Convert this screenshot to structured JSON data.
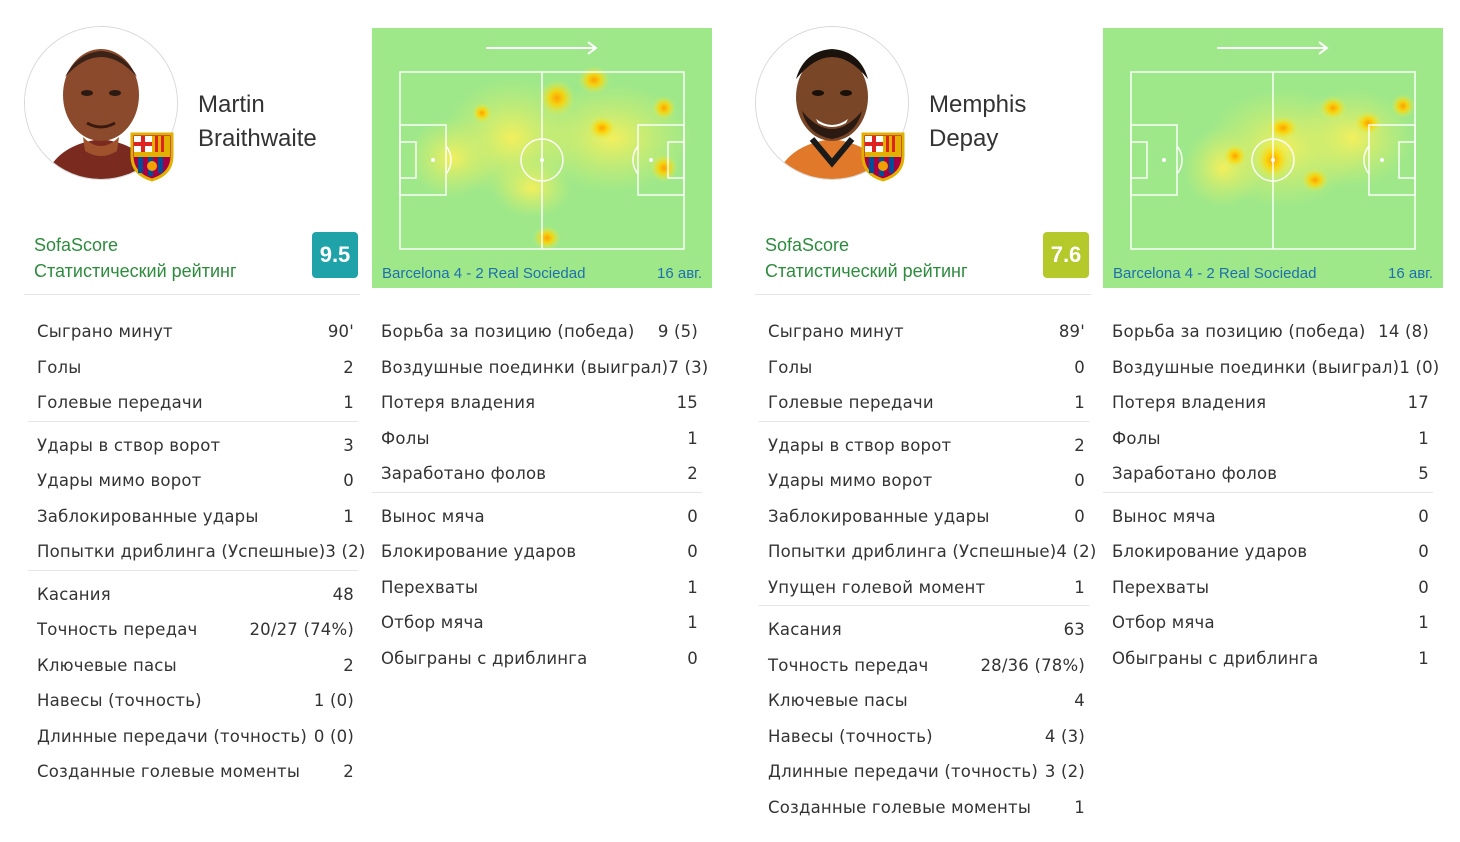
{
  "players": [
    {
      "first_name": "Martin",
      "last_name": "Braithwaite",
      "rating_label_1": "SofaScore",
      "rating_label_2": "Статистический рейтинг",
      "rating": "9.5",
      "rating_color": "#1fa3a8",
      "heatmap_caption": "Barcelona 4 - 2 Real Sociedad",
      "heatmap_date": "16 авг.",
      "left_groups": [
        [
          {
            "label": "Сыграно минут",
            "value": "90'"
          },
          {
            "label": "Голы",
            "value": "2"
          },
          {
            "label": "Голевые передачи",
            "value": "1"
          }
        ],
        [
          {
            "label": "Удары в створ ворот",
            "value": "3"
          },
          {
            "label": "Удары мимо ворот",
            "value": "0"
          },
          {
            "label": "Заблокированные удары",
            "value": "1"
          },
          {
            "label": "Попытки дриблинга (Успешные)",
            "value": "3 (2)"
          }
        ],
        [
          {
            "label": "Касания",
            "value": "48"
          },
          {
            "label": "Точность передач",
            "value": "20/27 (74%)"
          },
          {
            "label": "Ключевые пасы",
            "value": "2"
          },
          {
            "label": "Навесы (точность)",
            "value": "1 (0)"
          },
          {
            "label": "Длинные передачи (точность)",
            "value": "0 (0)"
          },
          {
            "label": "Созданные голевые моменты",
            "value": "2"
          }
        ]
      ],
      "right_groups": [
        [
          {
            "label": "Борьба за позицию (победа)",
            "value": "9 (5)"
          },
          {
            "label": "Воздушные поединки (выиграл)",
            "value": "7 (3)"
          },
          {
            "label": "Потеря владения",
            "value": "15"
          },
          {
            "label": "Фолы",
            "value": "1"
          },
          {
            "label": "Заработано фолов",
            "value": "2"
          }
        ],
        [
          {
            "label": "Вынос мяча",
            "value": "0"
          },
          {
            "label": "Блокирование ударов",
            "value": "0"
          },
          {
            "label": "Перехваты",
            "value": "1"
          },
          {
            "label": "Отбор мяча",
            "value": "1"
          },
          {
            "label": "Обыграны с дриблинга",
            "value": "0"
          }
        ]
      ]
    },
    {
      "first_name": "Memphis",
      "last_name": "Depay",
      "rating_label_1": "SofaScore",
      "rating_label_2": "Статистический рейтинг",
      "rating": "7.6",
      "rating_color": "#b5c92b",
      "heatmap_caption": "Barcelona 4 - 2 Real Sociedad",
      "heatmap_date": "16 авг.",
      "left_groups": [
        [
          {
            "label": "Сыграно минут",
            "value": "89'"
          },
          {
            "label": "Голы",
            "value": "0"
          },
          {
            "label": "Голевые передачи",
            "value": "1"
          }
        ],
        [
          {
            "label": "Удары в створ ворот",
            "value": "2"
          },
          {
            "label": "Удары мимо ворот",
            "value": "0"
          },
          {
            "label": "Заблокированные удары",
            "value": "0"
          },
          {
            "label": "Попытки дриблинга (Успешные)",
            "value": "4 (2)"
          },
          {
            "label": "Упущен голевой момент",
            "value": "1"
          }
        ],
        [
          {
            "label": "Касания",
            "value": "63"
          },
          {
            "label": "Точность передач",
            "value": "28/36 (78%)"
          },
          {
            "label": "Ключевые пасы",
            "value": "4"
          },
          {
            "label": "Навесы (точность)",
            "value": "4 (3)"
          },
          {
            "label": "Длинные передачи (точность)",
            "value": "3 (2)"
          },
          {
            "label": "Созданные голевые моменты",
            "value": "1"
          }
        ]
      ],
      "right_groups": [
        [
          {
            "label": "Борьба за позицию (победа)",
            "value": "14 (8)"
          },
          {
            "label": "Воздушные поединки (выиграл)",
            "value": "1 (0)"
          },
          {
            "label": "Потеря владения",
            "value": "17"
          },
          {
            "label": "Фолы",
            "value": "1"
          },
          {
            "label": "Заработано фолов",
            "value": "5"
          }
        ],
        [
          {
            "label": "Вынос мяча",
            "value": "0"
          },
          {
            "label": "Блокирование ударов",
            "value": "0"
          },
          {
            "label": "Перехваты",
            "value": "0"
          },
          {
            "label": "Отбор мяча",
            "value": "1"
          },
          {
            "label": "Обыграны с дриблинга",
            "value": "1"
          }
        ]
      ]
    }
  ],
  "icons": [
    "player-photo",
    "barcelona-crest-icon",
    "attack-direction-arrow-icon"
  ]
}
